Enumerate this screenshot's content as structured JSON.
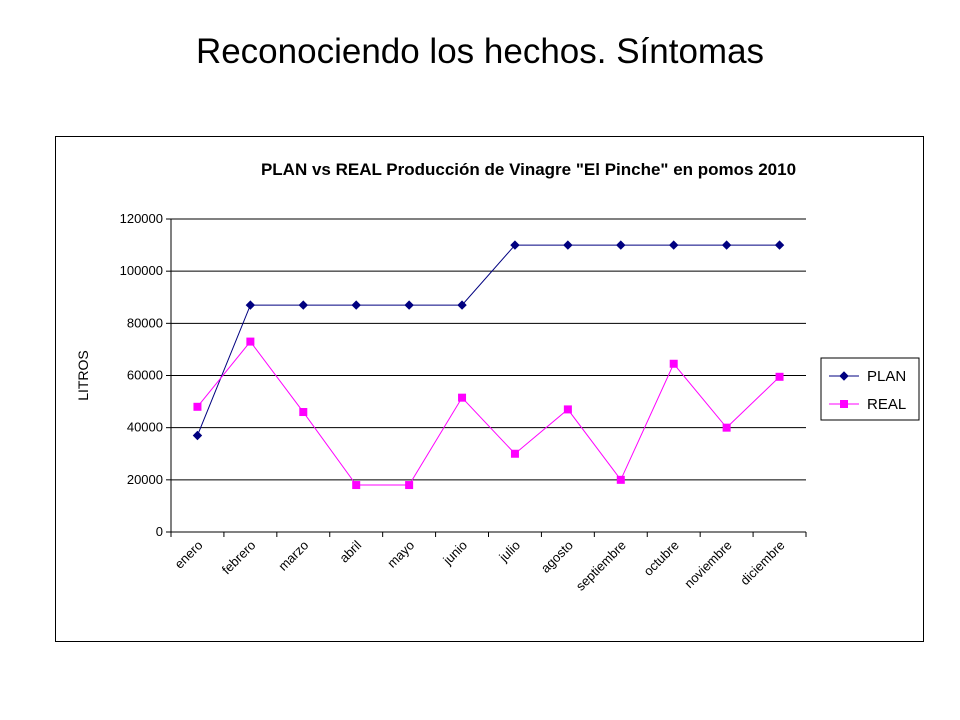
{
  "slide": {
    "title": "Reconociendo los hechos. Síntomas"
  },
  "chart_data": {
    "type": "line",
    "title": "PLAN vs REAL Producción de Vinagre \"El Pinche\" en pomos 2010",
    "xlabel": "",
    "ylabel": "LITROS",
    "ylim": [
      0,
      120000
    ],
    "yticks": [
      0,
      20000,
      40000,
      60000,
      80000,
      100000,
      120000
    ],
    "grid": true,
    "legend_position": "right",
    "categories": [
      "enero",
      "febrero",
      "marzo",
      "abril",
      "mayo",
      "junio",
      "julio",
      "agosto",
      "septiembre",
      "octubre",
      "noviembre",
      "diciembre"
    ],
    "series": [
      {
        "name": "PLAN",
        "color": "#000080",
        "marker": "diamond",
        "values": [
          37000,
          87000,
          87000,
          87000,
          87000,
          87000,
          110000,
          110000,
          110000,
          110000,
          110000,
          110000
        ]
      },
      {
        "name": "REAL",
        "color": "#FF00FF",
        "marker": "square",
        "values": [
          48000,
          73000,
          46000,
          18000,
          18000,
          51500,
          30000,
          47000,
          20000,
          64500,
          40000,
          59500
        ]
      }
    ]
  }
}
